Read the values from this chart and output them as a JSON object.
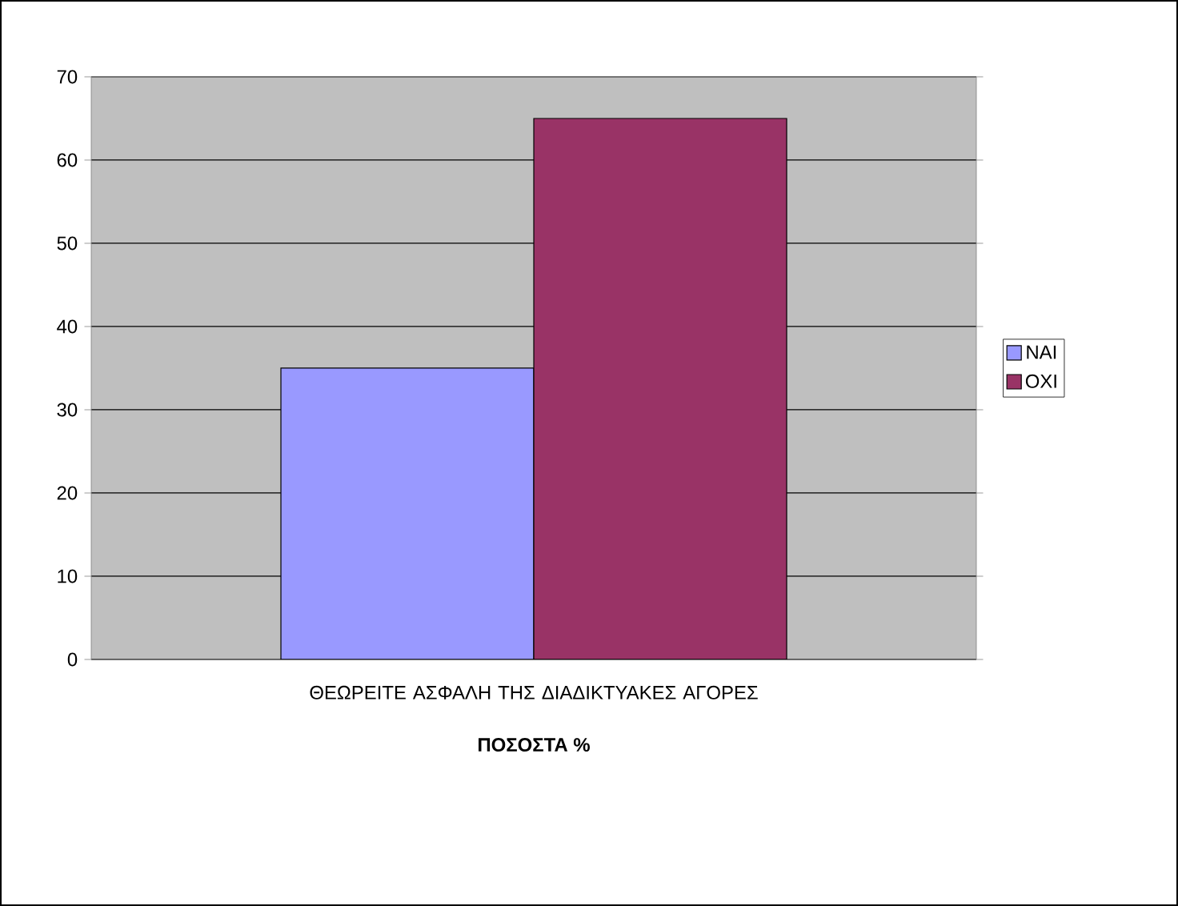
{
  "chart_data": {
    "type": "bar",
    "xlabel": "**ΠΟΣΟΣΤΑ %**",
    "categories": [
      "ΘΕΩΡΕΙΤΕ ΑΣΦΑΛΗ ΤΗΣ ΔΙΑΔΙΚΤΥΑΚΕΣ ΑΓΟΡΕΣ"
    ],
    "series": [
      {
        "name": "ΝΑΙ",
        "color": "#9999ff",
        "values": [
          35
        ]
      },
      {
        "name": "ΟΧΙ",
        "color": "#993366",
        "values": [
          65
        ]
      }
    ],
    "ylim": [
      0,
      70
    ],
    "yticks": [
      0,
      10,
      20,
      30,
      40,
      50,
      60,
      70
    ],
    "grid": "y",
    "legend": "right"
  }
}
